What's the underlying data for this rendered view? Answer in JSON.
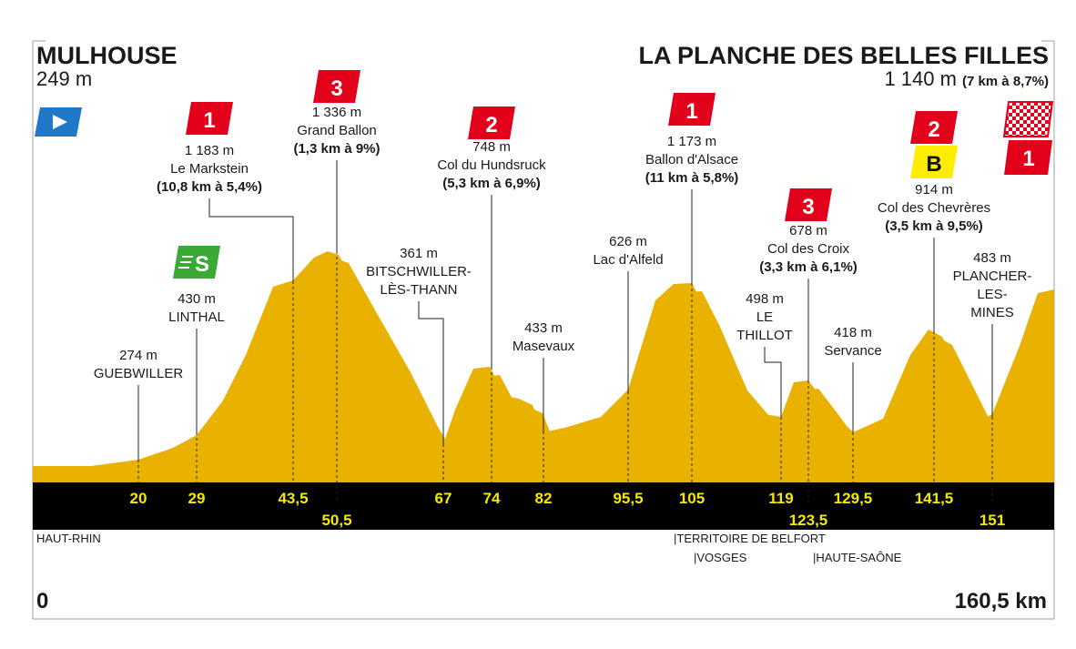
{
  "header": {
    "start": {
      "name": "MULHOUSE",
      "altitude": "249 m"
    },
    "finish": {
      "name": "LA PLANCHE DES BELLES FILLES",
      "altitude": "1 140 m",
      "climb": "(7 km à 8,7%)",
      "badge": "1"
    }
  },
  "points": [
    {
      "altitude": "274 m",
      "name": [
        "GUEBWILLER"
      ],
      "km": "20"
    },
    {
      "altitude": "430 m",
      "name": [
        "LINTHAL"
      ],
      "km": "29",
      "badges": [
        "S"
      ]
    },
    {
      "altitude": "1 183 m",
      "name": [
        "Le Markstein"
      ],
      "climb": "(10,8 km à 5,4%)",
      "km": "43,5",
      "badges": [
        "1"
      ]
    },
    {
      "altitude": "1 336 m",
      "name": [
        "Grand Ballon"
      ],
      "climb": "(1,3 km à 9%)",
      "km": "50,5",
      "badges": [
        "3"
      ]
    },
    {
      "altitude": "361 m",
      "name": [
        "BITSCHWILLER-",
        "LÈS-THANN"
      ],
      "km": "67"
    },
    {
      "altitude": "748 m",
      "name": [
        "Col du Hundsruck"
      ],
      "climb": "(5,3 km à 6,9%)",
      "km": "74",
      "badges": [
        "2"
      ]
    },
    {
      "altitude": "433 m",
      "name": [
        "Masevaux"
      ],
      "km": "82"
    },
    {
      "altitude": "626 m",
      "name": [
        "Lac d'Alfeld"
      ],
      "km": "95,5"
    },
    {
      "altitude": "1 173 m",
      "name": [
        "Ballon d'Alsace"
      ],
      "climb": "(11 km à 5,8%)",
      "km": "105",
      "badges": [
        "1"
      ]
    },
    {
      "altitude": "498 m",
      "name": [
        "LE",
        "THILLOT"
      ],
      "km": "119"
    },
    {
      "altitude": "678 m",
      "name": [
        "Col des Croix"
      ],
      "climb": "(3,3 km à 6,1%)",
      "km": "123,5",
      "badges": [
        "3"
      ]
    },
    {
      "altitude": "418 m",
      "name": [
        "Servance"
      ],
      "km": "129,5"
    },
    {
      "altitude": "914 m",
      "name": [
        "Col des Chevrères"
      ],
      "climb": "(3,5 km à 9,5%)",
      "km": "141,5",
      "badges": [
        "2",
        "B"
      ]
    },
    {
      "altitude": "483 m",
      "name": [
        "PLANCHER-",
        "LES-",
        "MINES"
      ],
      "km": "151"
    }
  ],
  "regions": [
    "HAUT-RHIN",
    "|TERRITOIRE DE BELFORT",
    "|VOSGES",
    "|HAUTE-SAÔNE"
  ],
  "distance": {
    "start": "0",
    "end": "160,5 km"
  }
}
